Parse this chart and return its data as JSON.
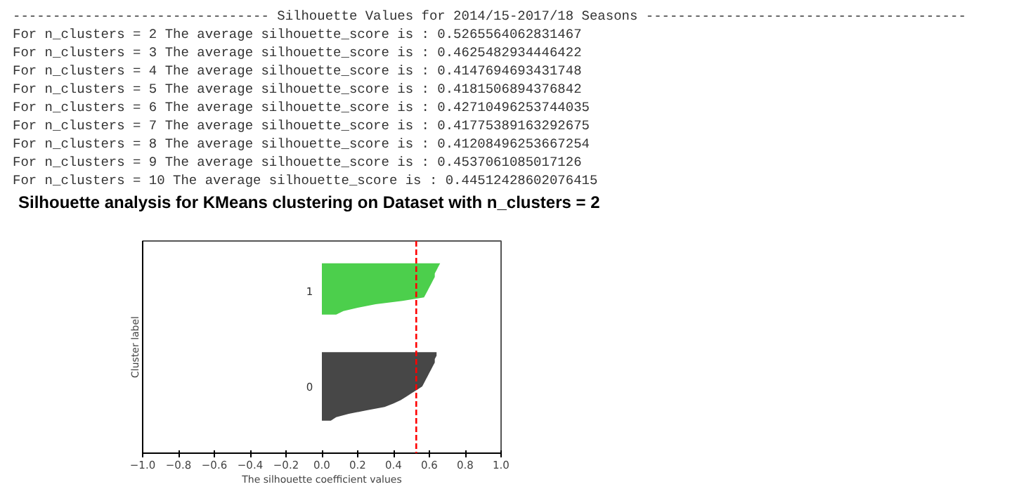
{
  "chart_data": {
    "type": "area",
    "orientation": "horizontal",
    "title": "Silhouette analysis for KMeans clustering on Dataset with n_clusters = 2",
    "xlabel": "The silhouette coefficient values",
    "ylabel": "Cluster label",
    "annotations": [
      "-------------------------------- Silhouette Values for 2014/15-2017/18 Seasons ----------------------------------------",
      "For n_clusters = 2 The average silhouette_score is : 0.5265564062831467",
      "For n_clusters = 3 The average silhouette_score is : 0.4625482934446422",
      "For n_clusters = 4 The average silhouette_score is : 0.4147694693431748",
      "For n_clusters = 5 The average silhouette_score is : 0.4181506894376842",
      "For n_clusters = 6 The average silhouette_score is : 0.42710496253744035",
      "For n_clusters = 7 The average silhouette_score is : 0.41775389163292675",
      "For n_clusters = 8 The average silhouette_score is : 0.41208496253667254",
      "For n_clusters = 9 The average silhouette_score is : 0.4537061085017126",
      "For n_clusters = 10 The average silhouette_score is : 0.44512428602076415"
    ],
    "categories": [
      null,
      null,
      null,
      null,
      null,
      null,
      null,
      null,
      null,
      null,
      null,
      null,
      null,
      null,
      null,
      null,
      null,
      null,
      null,
      null,
      null,
      null,
      null,
      null,
      null,
      null,
      null,
      null,
      null,
      null,
      null,
      null,
      null,
      null,
      null,
      null,
      null,
      null,
      null,
      null,
      null,
      null,
      null,
      null,
      null,
      null,
      null,
      null,
      null,
      null,
      null,
      null,
      null,
      null,
      null,
      null,
      null,
      null,
      null,
      null,
      null,
      null
    ],
    "series": [
      {
        "name": "1",
        "color": "#4ccf4c",
        "values": [
          null,
          null,
          null,
          null,
          null,
          null,
          0.66,
          0.65,
          0.64,
          0.63,
          0.63,
          0.62,
          0.61,
          0.6,
          0.59,
          0.58,
          0.57,
          0.45,
          0.3,
          0.2,
          0.12,
          0.08,
          null,
          null,
          null,
          null,
          null,
          null,
          null,
          null,
          null,
          null,
          null,
          null,
          null,
          null,
          null,
          null,
          null,
          null,
          null,
          null,
          null,
          null,
          null,
          null,
          null,
          null,
          null,
          null,
          null,
          null,
          null,
          null,
          null,
          null,
          null,
          null,
          null,
          null,
          null,
          null
        ]
      },
      {
        "name": "0",
        "color": "#474747",
        "values": [
          null,
          null,
          null,
          null,
          null,
          null,
          null,
          null,
          null,
          null,
          null,
          null,
          null,
          null,
          null,
          null,
          null,
          null,
          null,
          null,
          null,
          null,
          null,
          null,
          null,
          null,
          null,
          null,
          null,
          null,
          null,
          null,
          0.64,
          0.64,
          0.63,
          0.63,
          0.62,
          0.61,
          0.6,
          0.59,
          0.58,
          0.57,
          0.56,
          0.53,
          0.5,
          0.47,
          0.44,
          0.4,
          0.35,
          0.25,
          0.15,
          0.08,
          0.05,
          null,
          null,
          null,
          null,
          null,
          null,
          null,
          null,
          null
        ]
      }
    ],
    "xlim": [
      -1.0,
      1.0
    ],
    "xticks": [
      {
        "value": -1.0,
        "label": "−1.0"
      },
      {
        "value": -0.8,
        "label": "−0.8"
      },
      {
        "value": -0.6,
        "label": "−0.6"
      },
      {
        "value": -0.4,
        "label": "−0.4"
      },
      {
        "value": -0.2,
        "label": "−0.2"
      },
      {
        "value": 0.0,
        "label": "0.0"
      },
      {
        "value": 0.2,
        "label": "0.2"
      },
      {
        "value": 0.4,
        "label": "0.4"
      },
      {
        "value": 0.6,
        "label": "0.6"
      },
      {
        "value": 0.8,
        "label": "0.8"
      },
      {
        "value": 1.0,
        "label": "1.0"
      }
    ],
    "ref_lines": [
      {
        "axis": "x",
        "value": 0.5265564062831467,
        "color": "#ff0000",
        "line_style": "dashed"
      }
    ],
    "tick_labels": "x"
  }
}
